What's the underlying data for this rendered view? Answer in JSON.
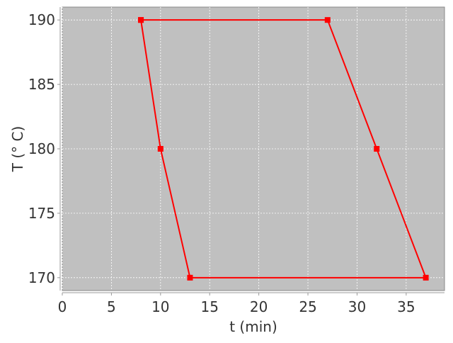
{
  "chart_data": {
    "type": "line",
    "title": "",
    "xlabel": "t (min)",
    "ylabel": "T (° C)",
    "xlim": [
      0,
      38.9
    ],
    "ylim": [
      169,
      191
    ],
    "xticks": [
      0,
      5,
      10,
      15,
      20,
      25,
      30,
      35
    ],
    "yticks": [
      170,
      175,
      180,
      185,
      190
    ],
    "grid": true,
    "series": [
      {
        "x": [
          8,
          27,
          32,
          37,
          13,
          10,
          8
        ],
        "y": [
          190,
          190,
          180,
          170,
          170,
          180,
          190
        ],
        "color": "#ff0000",
        "marker": "square"
      }
    ],
    "colors": {
      "plot_background": "#c0c0c0",
      "grid": "#ffffff",
      "line": "#ff0000"
    }
  }
}
